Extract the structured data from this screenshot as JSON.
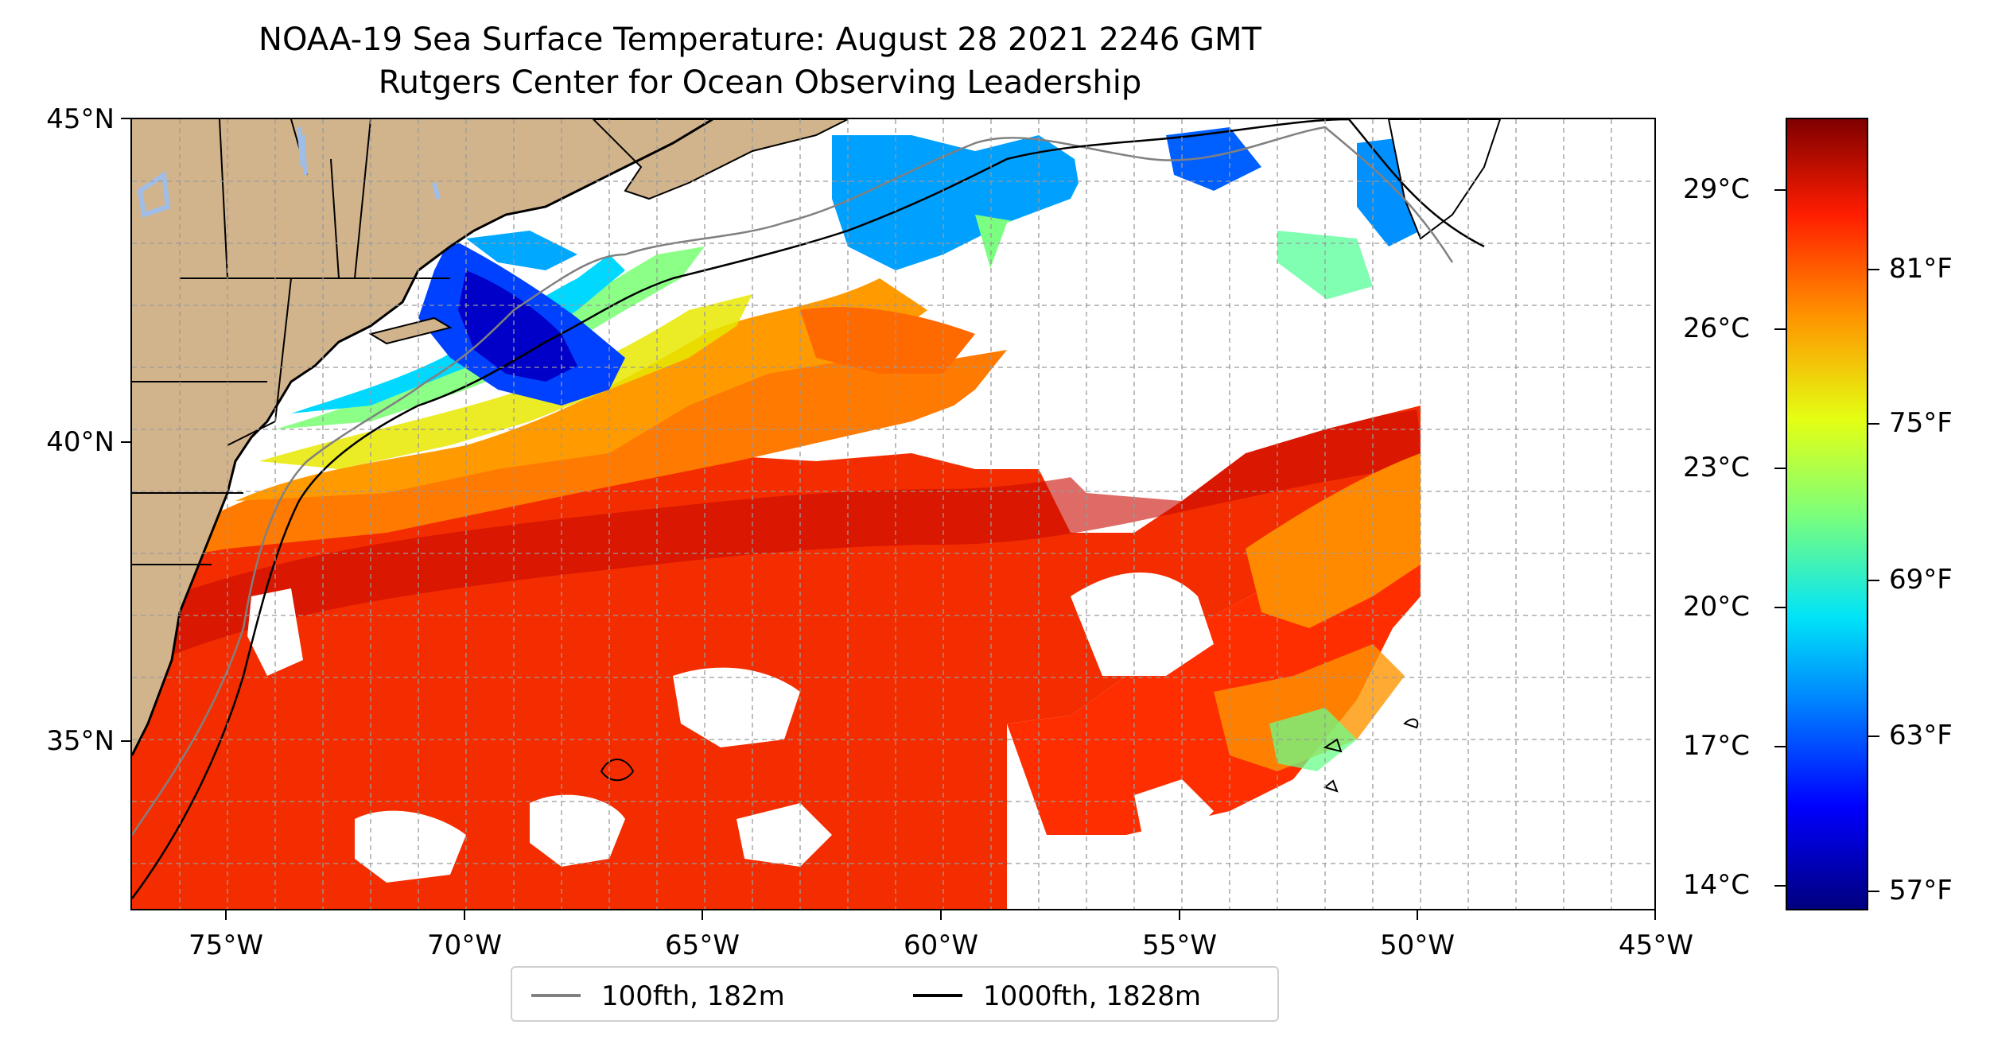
{
  "title": {
    "line1": "NOAA-19 Sea Surface Temperature: August 28 2021 2246 GMT",
    "line2": "Rutgers Center for Ocean Observing Leadership"
  },
  "map": {
    "extent": {
      "lon": [
        -77,
        -45
      ],
      "lat": [
        32.2,
        45
      ]
    },
    "land_color": "#d2b48c",
    "lake_color": "#9fbde6",
    "gridlines": "dashed gray every 1 degree",
    "x_ticks": [
      "75°W",
      "70°W",
      "65°W",
      "60°W",
      "55°W",
      "50°W",
      "45°W"
    ],
    "y_ticks": [
      "45°N",
      "40°N",
      "35°N"
    ]
  },
  "legend": {
    "placement": "bottom-center below map",
    "items": [
      {
        "label": "100fth, 182m",
        "color": "#808080"
      },
      {
        "label": "1000fth, 1828m",
        "color": "#000000"
      }
    ]
  },
  "colorbar": {
    "colormap": "jet",
    "left_labels": [
      "29°C",
      "26°C",
      "23°C",
      "20°C",
      "17°C",
      "14°C"
    ],
    "right_labels": [
      "81°F",
      "75°F",
      "69°F",
      "63°F",
      "57°F"
    ]
  }
}
